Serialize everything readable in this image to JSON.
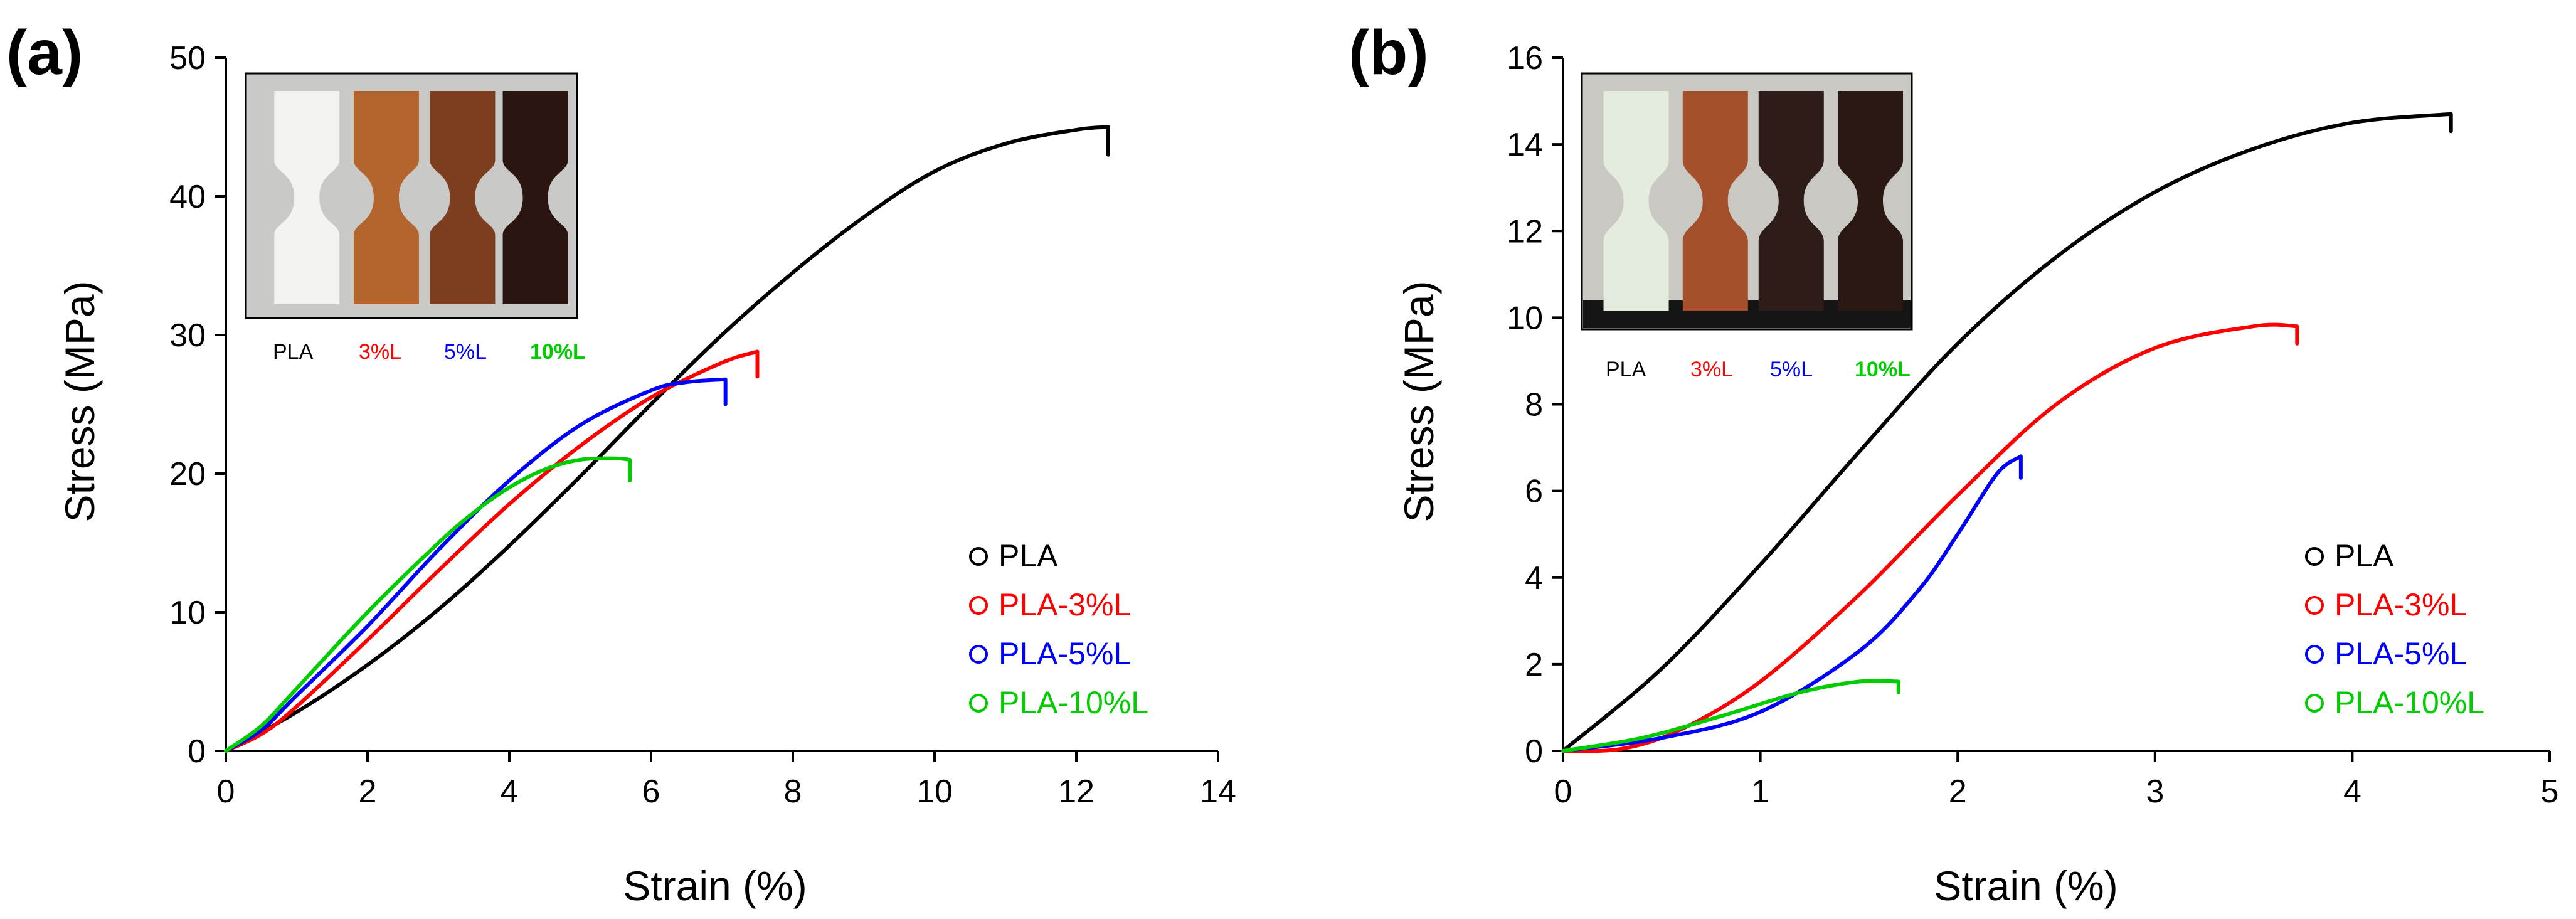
{
  "colors": {
    "PLA": "#000000",
    "PLA-3%L": "#ff0000",
    "PLA-5%L": "#0000ff",
    "PLA-10%L": "#00cc00"
  },
  "chart_data": [
    {
      "panel_label": "(a)",
      "type": "line",
      "xlabel": "Strain (%)",
      "ylabel": "Stress (MPa)",
      "xlim": [
        0,
        14
      ],
      "ylim": [
        0,
        50
      ],
      "xticks": [
        "0",
        "2",
        "4",
        "6",
        "8",
        "10",
        "12",
        "14"
      ],
      "yticks": [
        "0",
        "10",
        "20",
        "30",
        "40",
        "50"
      ],
      "legend_position": "bottom-right",
      "inset_labels": [
        "PLA",
        "3%L",
        "5%L",
        "10%L"
      ],
      "series": [
        {
          "name": "PLA",
          "x": [
            0,
            1,
            2,
            3,
            4,
            5,
            6,
            7,
            8,
            9,
            10,
            11,
            12,
            12.45,
            12.45
          ],
          "y": [
            0,
            2.8,
            6.2,
            10.2,
            14.8,
            19.8,
            25,
            30,
            34.5,
            38.5,
            41.8,
            43.8,
            44.8,
            45,
            43
          ]
        },
        {
          "name": "PLA-3%L",
          "x": [
            0,
            0.5,
            1,
            2,
            3,
            4,
            5,
            6,
            7,
            7.5,
            7.5
          ],
          "y": [
            0,
            1.2,
            3.2,
            8,
            13,
            17.8,
            22,
            25.5,
            28,
            28.8,
            27
          ]
        },
        {
          "name": "PLA-5%L",
          "x": [
            0,
            0.5,
            1,
            2,
            3,
            4,
            5,
            6,
            6.5,
            7.05,
            7.05
          ],
          "y": [
            0,
            1.5,
            4,
            9,
            14.5,
            19.5,
            23.5,
            26,
            26.6,
            26.8,
            25
          ]
        },
        {
          "name": "PLA-10%L",
          "x": [
            0,
            0.5,
            1,
            2,
            3,
            3.5,
            4,
            4.5,
            5,
            5.5,
            5.7,
            5.7
          ],
          "y": [
            0,
            1.8,
            4.5,
            10,
            15,
            17.2,
            19,
            20.3,
            21,
            21.1,
            21,
            19.5
          ]
        }
      ]
    },
    {
      "panel_label": "(b)",
      "type": "line",
      "xlabel": "Strain (%)",
      "ylabel": "Stress (MPa)",
      "xlim": [
        0,
        5
      ],
      "ylim": [
        0,
        16
      ],
      "xticks": [
        "0",
        "1",
        "2",
        "3",
        "4",
        "5"
      ],
      "yticks": [
        "0",
        "2",
        "4",
        "6",
        "8",
        "10",
        "12",
        "14",
        "16"
      ],
      "legend_position": "bottom-right",
      "inset_labels": [
        "PLA",
        "3%L",
        "5%L",
        "10%L"
      ],
      "series": [
        {
          "name": "PLA",
          "x": [
            0,
            0.5,
            1,
            1.5,
            2,
            2.5,
            3,
            3.5,
            4,
            4.5,
            4.5
          ],
          "y": [
            0,
            1.9,
            4.3,
            6.9,
            9.4,
            11.4,
            12.9,
            13.9,
            14.5,
            14.7,
            14.3
          ]
        },
        {
          "name": "PLA-3%L",
          "x": [
            0,
            0.3,
            0.6,
            1,
            1.5,
            2,
            2.5,
            3,
            3.5,
            3.72,
            3.72
          ],
          "y": [
            0,
            0.05,
            0.5,
            1.6,
            3.6,
            5.9,
            8,
            9.3,
            9.8,
            9.8,
            9.4
          ]
        },
        {
          "name": "PLA-5%L",
          "x": [
            0,
            0.5,
            1,
            1.5,
            1.8,
            2,
            2.2,
            2.32,
            2.32
          ],
          "y": [
            0,
            0.3,
            0.9,
            2.3,
            3.7,
            5,
            6.4,
            6.8,
            6.3
          ]
        },
        {
          "name": "PLA-10%L",
          "x": [
            0,
            0.4,
            0.8,
            1.2,
            1.5,
            1.7,
            1.7
          ],
          "y": [
            0,
            0.3,
            0.8,
            1.35,
            1.6,
            1.6,
            1.35
          ]
        }
      ]
    }
  ]
}
